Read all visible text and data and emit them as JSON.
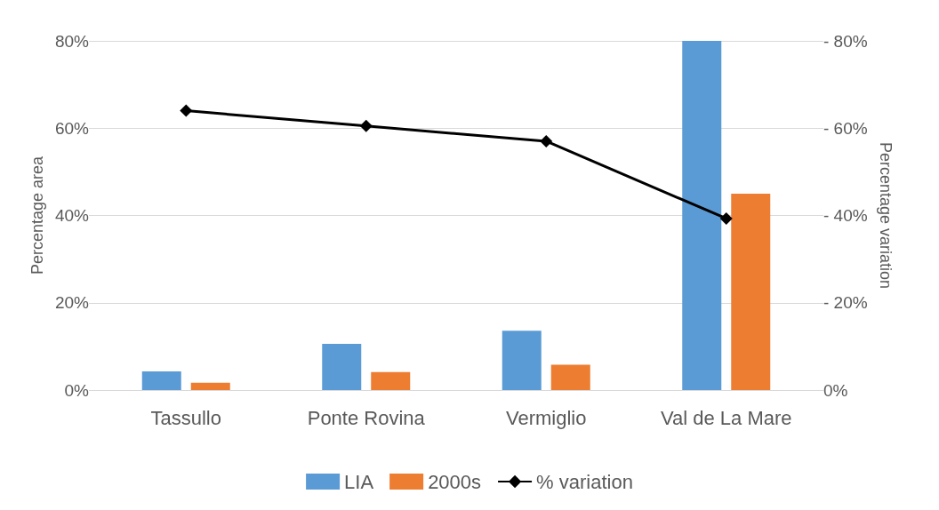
{
  "chart_data": {
    "type": "bar",
    "categories": [
      "Tassullo",
      "Ponte Rovina",
      "Vermiglio",
      "Val de La Mare"
    ],
    "ylabel": "Percentage area",
    "y2label": "Percentage variation",
    "series": [
      {
        "name": "LIA",
        "color": "#5b9bd5",
        "values": [
          4.3,
          10.6,
          13.6,
          80
        ]
      },
      {
        "name": "2000s",
        "color": "#ed7d31",
        "values": [
          1.7,
          4.1,
          5.8,
          45
        ]
      },
      {
        "name": "% variation",
        "type": "line",
        "axis": "y2",
        "color": "#000000",
        "marker": "diamond",
        "values": [
          -64,
          -60.5,
          -57,
          -39.3
        ]
      }
    ],
    "ylim": [
      0,
      80
    ],
    "yticks": [
      {
        "value": 0,
        "label": "0%"
      },
      {
        "value": 20,
        "label": "20%"
      },
      {
        "value": 40,
        "label": "40%"
      },
      {
        "value": 60,
        "label": "60%"
      },
      {
        "value": 80,
        "label": "80%"
      }
    ],
    "y2lim": [
      0,
      -80
    ],
    "y2ticks": [
      {
        "value": 0,
        "label": "0%"
      },
      {
        "value": -20,
        "label": "- 20%"
      },
      {
        "value": -40,
        "label": "- 40%"
      },
      {
        "value": -60,
        "label": "- 60%"
      },
      {
        "value": -80,
        "label": "- 80%"
      }
    ],
    "grid": "y",
    "legend": "bottom"
  }
}
